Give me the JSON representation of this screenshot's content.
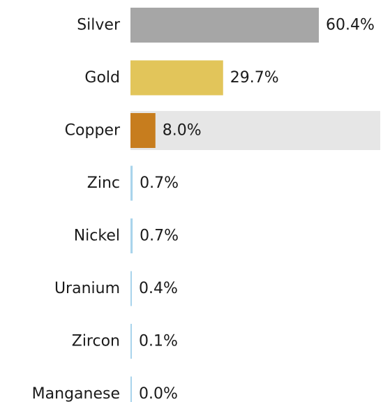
{
  "chart_data": {
    "type": "bar",
    "orientation": "horizontal",
    "categories": [
      "Silver",
      "Gold",
      "Copper",
      "Zinc",
      "Nickel",
      "Uranium",
      "Zircon",
      "Manganese"
    ],
    "values": [
      60.4,
      29.7,
      8.0,
      0.7,
      0.7,
      0.4,
      0.1,
      0.0
    ],
    "value_labels": [
      "60.4%",
      "29.7%",
      "8.0%",
      "0.7%",
      "0.7%",
      "0.4%",
      "0.1%",
      "0.0%"
    ],
    "unit": "%",
    "xlim": [
      0,
      60.4
    ],
    "colors": [
      "#a6a6a6",
      "#e2c55a",
      "#c77d1e",
      "#a9d4ec",
      "#a9d4ec",
      "#a9d4ec",
      "#a9d4ec",
      "#a9d4ec"
    ],
    "highlighted_category": "Copper",
    "highlight_color": "#e6e6e6",
    "title": "",
    "xlabel": "",
    "ylabel": "",
    "grid": false,
    "legend": false
  }
}
